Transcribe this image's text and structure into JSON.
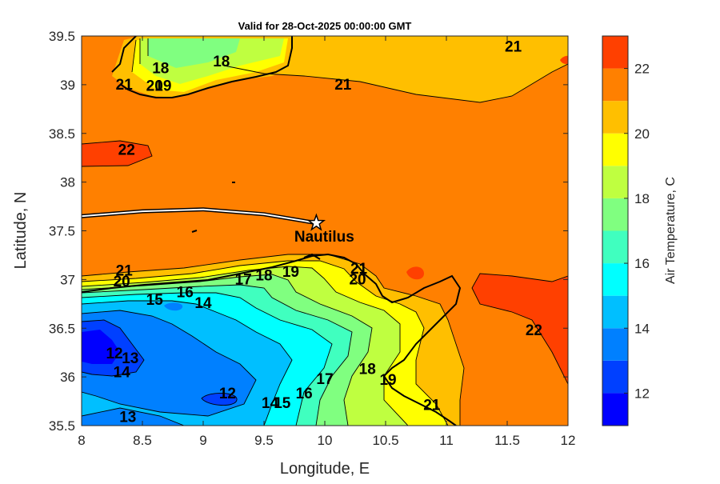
{
  "chart_data": {
    "type": "contour-map",
    "title": "Valid for 28-Oct-2025 00:00:00 GMT",
    "xlabel": "Longitude, E",
    "ylabel": "Latitude, N",
    "xlim": [
      8,
      12
    ],
    "ylim": [
      35.5,
      39.5
    ],
    "xticks": [
      8,
      8.5,
      9,
      9.5,
      10,
      10.5,
      11,
      11.5,
      12
    ],
    "xtick_labels": [
      "8",
      "8.5",
      "9",
      "9.5",
      "10",
      "10.5",
      "11",
      "11.5",
      "12"
    ],
    "yticks": [
      35.5,
      36,
      36.5,
      37,
      37.5,
      38,
      38.5,
      39,
      39.5
    ],
    "ytick_labels": [
      "35.5",
      "36",
      "36.5",
      "37",
      "37.5",
      "38",
      "38.5",
      "39",
      "39.5"
    ],
    "colorbar": {
      "label": "Air Temperature, C",
      "range": [
        11,
        23
      ],
      "ticks": [
        12,
        14,
        16,
        18,
        20,
        22
      ],
      "tick_labels": [
        "12",
        "14",
        "16",
        "18",
        "20",
        "22"
      ],
      "levels": [
        11,
        12,
        13,
        14,
        15,
        16,
        17,
        18,
        19,
        20,
        21,
        22,
        23
      ],
      "colors": [
        "#0000ff",
        "#0040ff",
        "#0080ff",
        "#00bfff",
        "#00ffff",
        "#40ffbf",
        "#80ff80",
        "#bfff40",
        "#ffff00",
        "#ffbf00",
        "#ff8000",
        "#ff4000"
      ]
    },
    "marker": {
      "label": "Nautilus",
      "lon": 9.93,
      "lat": 37.58,
      "symbol": "star",
      "track": [
        [
          8,
          37.65
        ],
        [
          8.5,
          37.7
        ],
        [
          9,
          37.72
        ],
        [
          9.5,
          37.67
        ],
        [
          9.93,
          37.58
        ]
      ]
    },
    "contour_labels": [
      {
        "text": "21",
        "lon": 11.55,
        "lat": 39.38
      },
      {
        "text": "21",
        "lon": 10.15,
        "lat": 38.99
      },
      {
        "text": "18",
        "lon": 8.65,
        "lat": 39.16
      },
      {
        "text": "18",
        "lon": 9.15,
        "lat": 39.23
      },
      {
        "text": "19",
        "lon": 8.67,
        "lat": 38.98
      },
      {
        "text": "20",
        "lon": 8.6,
        "lat": 38.98
      },
      {
        "text": "21",
        "lon": 8.35,
        "lat": 38.99
      },
      {
        "text": "22",
        "lon": 8.37,
        "lat": 38.32
      },
      {
        "text": "21",
        "lon": 8.35,
        "lat": 37.08
      },
      {
        "text": "20",
        "lon": 8.33,
        "lat": 36.97
      },
      {
        "text": "16",
        "lon": 8.85,
        "lat": 36.86
      },
      {
        "text": "15",
        "lon": 8.6,
        "lat": 36.78
      },
      {
        "text": "14",
        "lon": 9.0,
        "lat": 36.75
      },
      {
        "text": "17",
        "lon": 9.33,
        "lat": 36.99
      },
      {
        "text": "18",
        "lon": 9.5,
        "lat": 37.03
      },
      {
        "text": "19",
        "lon": 9.72,
        "lat": 37.07
      },
      {
        "text": "21",
        "lon": 10.28,
        "lat": 37.1
      },
      {
        "text": "20",
        "lon": 10.27,
        "lat": 36.99
      },
      {
        "text": "12",
        "lon": 8.27,
        "lat": 36.23
      },
      {
        "text": "13",
        "lon": 8.4,
        "lat": 36.18
      },
      {
        "text": "14",
        "lon": 8.33,
        "lat": 36.04
      },
      {
        "text": "13",
        "lon": 8.38,
        "lat": 35.58
      },
      {
        "text": "12",
        "lon": 9.2,
        "lat": 35.82
      },
      {
        "text": "14",
        "lon": 9.55,
        "lat": 35.72
      },
      {
        "text": "15",
        "lon": 9.65,
        "lat": 35.72
      },
      {
        "text": "16",
        "lon": 9.83,
        "lat": 35.82
      },
      {
        "text": "17",
        "lon": 10.0,
        "lat": 35.97
      },
      {
        "text": "18",
        "lon": 10.35,
        "lat": 36.07
      },
      {
        "text": "19",
        "lon": 10.52,
        "lat": 35.96
      },
      {
        "text": "21",
        "lon": 10.88,
        "lat": 35.7
      },
      {
        "text": "22",
        "lon": 11.72,
        "lat": 36.47
      }
    ]
  }
}
